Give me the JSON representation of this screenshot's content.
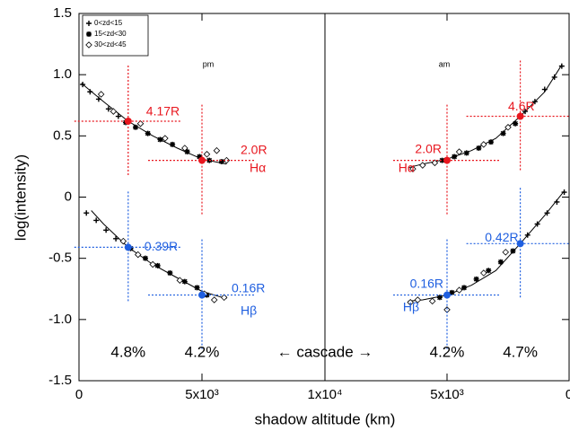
{
  "chart_data": [
    {
      "type": "scatter",
      "label": "pm",
      "xlabel": "shadow altitude (km)",
      "ylabel": "log(intensity)",
      "annotation": "← cascade →",
      "xlim": [
        0,
        10000
      ],
      "xticks": [
        0,
        {
          "value": 5000,
          "label": "5x10³"
        },
        {
          "value": 10000,
          "label": "1x10⁴"
        }
      ],
      "ylim": [
        -1.5,
        1.5
      ],
      "yticks": [
        -1.5,
        {
          "value": -1,
          "label": "-1.0"
        },
        -0.5,
        0,
        0.5,
        {
          "value": 1,
          "label": "1.0"
        },
        1.5
      ],
      "legend": "upper left",
      "series": [
        {
          "name": "0<zd<15",
          "marker": "plus",
          "color": "#000000",
          "x": [
            150,
            450,
            800,
            1200,
            1600,
            300,
            700,
            1100,
            1500
          ],
          "values": [
            0.92,
            0.86,
            0.8,
            0.72,
            0.66,
            -0.13,
            -0.19,
            -0.27,
            -0.34
          ]
        },
        {
          "name": "15<zd<30",
          "marker": "star",
          "color": "#000000",
          "x": [
            1900,
            2300,
            2800,
            3300,
            3800,
            4400,
            4900,
            5300,
            5800,
            2100,
            2700,
            3200,
            3700,
            4300,
            4800,
            5200
          ],
          "values": [
            0.61,
            0.57,
            0.52,
            0.47,
            0.43,
            0.37,
            0.33,
            0.3,
            0.29,
            -0.42,
            -0.5,
            -0.56,
            -0.62,
            -0.69,
            -0.74,
            -0.8
          ]
        },
        {
          "name": "30<zd<45",
          "marker": "diamond",
          "color": "#000000",
          "x": [
            900,
            1400,
            2500,
            3500,
            4300,
            5200,
            5600,
            6000,
            1800,
            2400,
            3000,
            4100,
            5100,
            5500,
            5900
          ],
          "values": [
            0.84,
            0.7,
            0.6,
            0.48,
            0.4,
            0.35,
            0.38,
            0.3,
            -0.36,
            -0.47,
            -0.55,
            -0.68,
            -0.79,
            -0.84,
            -0.82
          ]
        }
      ],
      "fits": [
        {
          "x": [
            100,
            1000,
            2000,
            3000,
            4000,
            5000,
            6000
          ],
          "values": [
            0.93,
            0.78,
            0.62,
            0.5,
            0.4,
            0.31,
            0.27
          ]
        },
        {
          "x": [
            500,
            1000,
            2000,
            3000,
            4000,
            5000,
            6000
          ],
          "values": [
            -0.11,
            -0.22,
            -0.41,
            -0.55,
            -0.66,
            -0.77,
            -0.83
          ]
        }
      ],
      "lines": [
        {
          "name": "Hα",
          "color": "#e8171f",
          "x": [
            2000,
            5000
          ],
          "values": [
            0.62,
            0.3
          ],
          "value_labels": [
            "4.17R",
            "2.0R"
          ]
        },
        {
          "name": "Hβ",
          "color": "#1f5fe0",
          "x": [
            2000,
            5000
          ],
          "values": [
            -0.41,
            -0.8
          ],
          "value_labels": [
            "0.39R",
            "0.16R"
          ]
        }
      ],
      "percent_labels": [
        "4.8%",
        "4.2%"
      ]
    },
    {
      "type": "scatter",
      "label": "am",
      "xlim": [
        10000,
        0
      ],
      "xticks": [
        {
          "value": 5000,
          "label": "5x10³"
        },
        0
      ],
      "series": [
        {
          "marker": "plus",
          "color": "#000000",
          "x": [
            300,
            600,
            1000,
            1400,
            1800,
            200,
            500,
            900,
            1300,
            1700
          ],
          "values": [
            1.07,
            0.98,
            0.88,
            0.78,
            0.7,
            0.04,
            -0.04,
            -0.13,
            -0.22,
            -0.31
          ]
        },
        {
          "marker": "star",
          "color": "#000000",
          "x": [
            2200,
            2700,
            3200,
            3700,
            4200,
            4700,
            5200,
            2300,
            2800,
            3300,
            3800,
            4300,
            4800,
            5300
          ],
          "values": [
            0.6,
            0.52,
            0.45,
            0.4,
            0.36,
            0.33,
            0.3,
            -0.44,
            -0.53,
            -0.6,
            -0.67,
            -0.74,
            -0.78,
            -0.82
          ]
        },
        {
          "marker": "diamond",
          "color": "#000000",
          "x": [
            2500,
            3500,
            4500,
            5500,
            6000,
            6400,
            2600,
            3500,
            4500,
            5600,
            6200,
            6500,
            5000
          ],
          "values": [
            0.57,
            0.43,
            0.37,
            0.28,
            0.26,
            0.23,
            -0.45,
            -0.62,
            -0.76,
            -0.85,
            -0.84,
            -0.86,
            -0.92
          ]
        }
      ],
      "fits": [
        {
          "x": [
            6600,
            6000,
            5000,
            4000,
            3000,
            2000,
            1000,
            300
          ],
          "values": [
            0.24,
            0.27,
            0.31,
            0.38,
            0.48,
            0.66,
            0.86,
            1.08
          ]
        },
        {
          "x": [
            6600,
            6000,
            5000,
            4000,
            3000,
            2000,
            1000,
            200
          ],
          "values": [
            -0.85,
            -0.84,
            -0.8,
            -0.72,
            -0.6,
            -0.38,
            -0.15,
            0.05
          ]
        }
      ],
      "lines": [
        {
          "name": "Hα",
          "color": "#e8171f",
          "x": [
            2000,
            5000
          ],
          "values": [
            0.66,
            0.3
          ],
          "value_labels": [
            "4.6R",
            "2.0R"
          ]
        },
        {
          "name": "Hβ",
          "color": "#1f5fe0",
          "x": [
            2000,
            5000
          ],
          "values": [
            -0.38,
            -0.8
          ],
          "value_labels": [
            "0.42R",
            "0.16R"
          ]
        }
      ],
      "percent_labels": [
        "4.7%",
        "4.2%"
      ]
    }
  ]
}
